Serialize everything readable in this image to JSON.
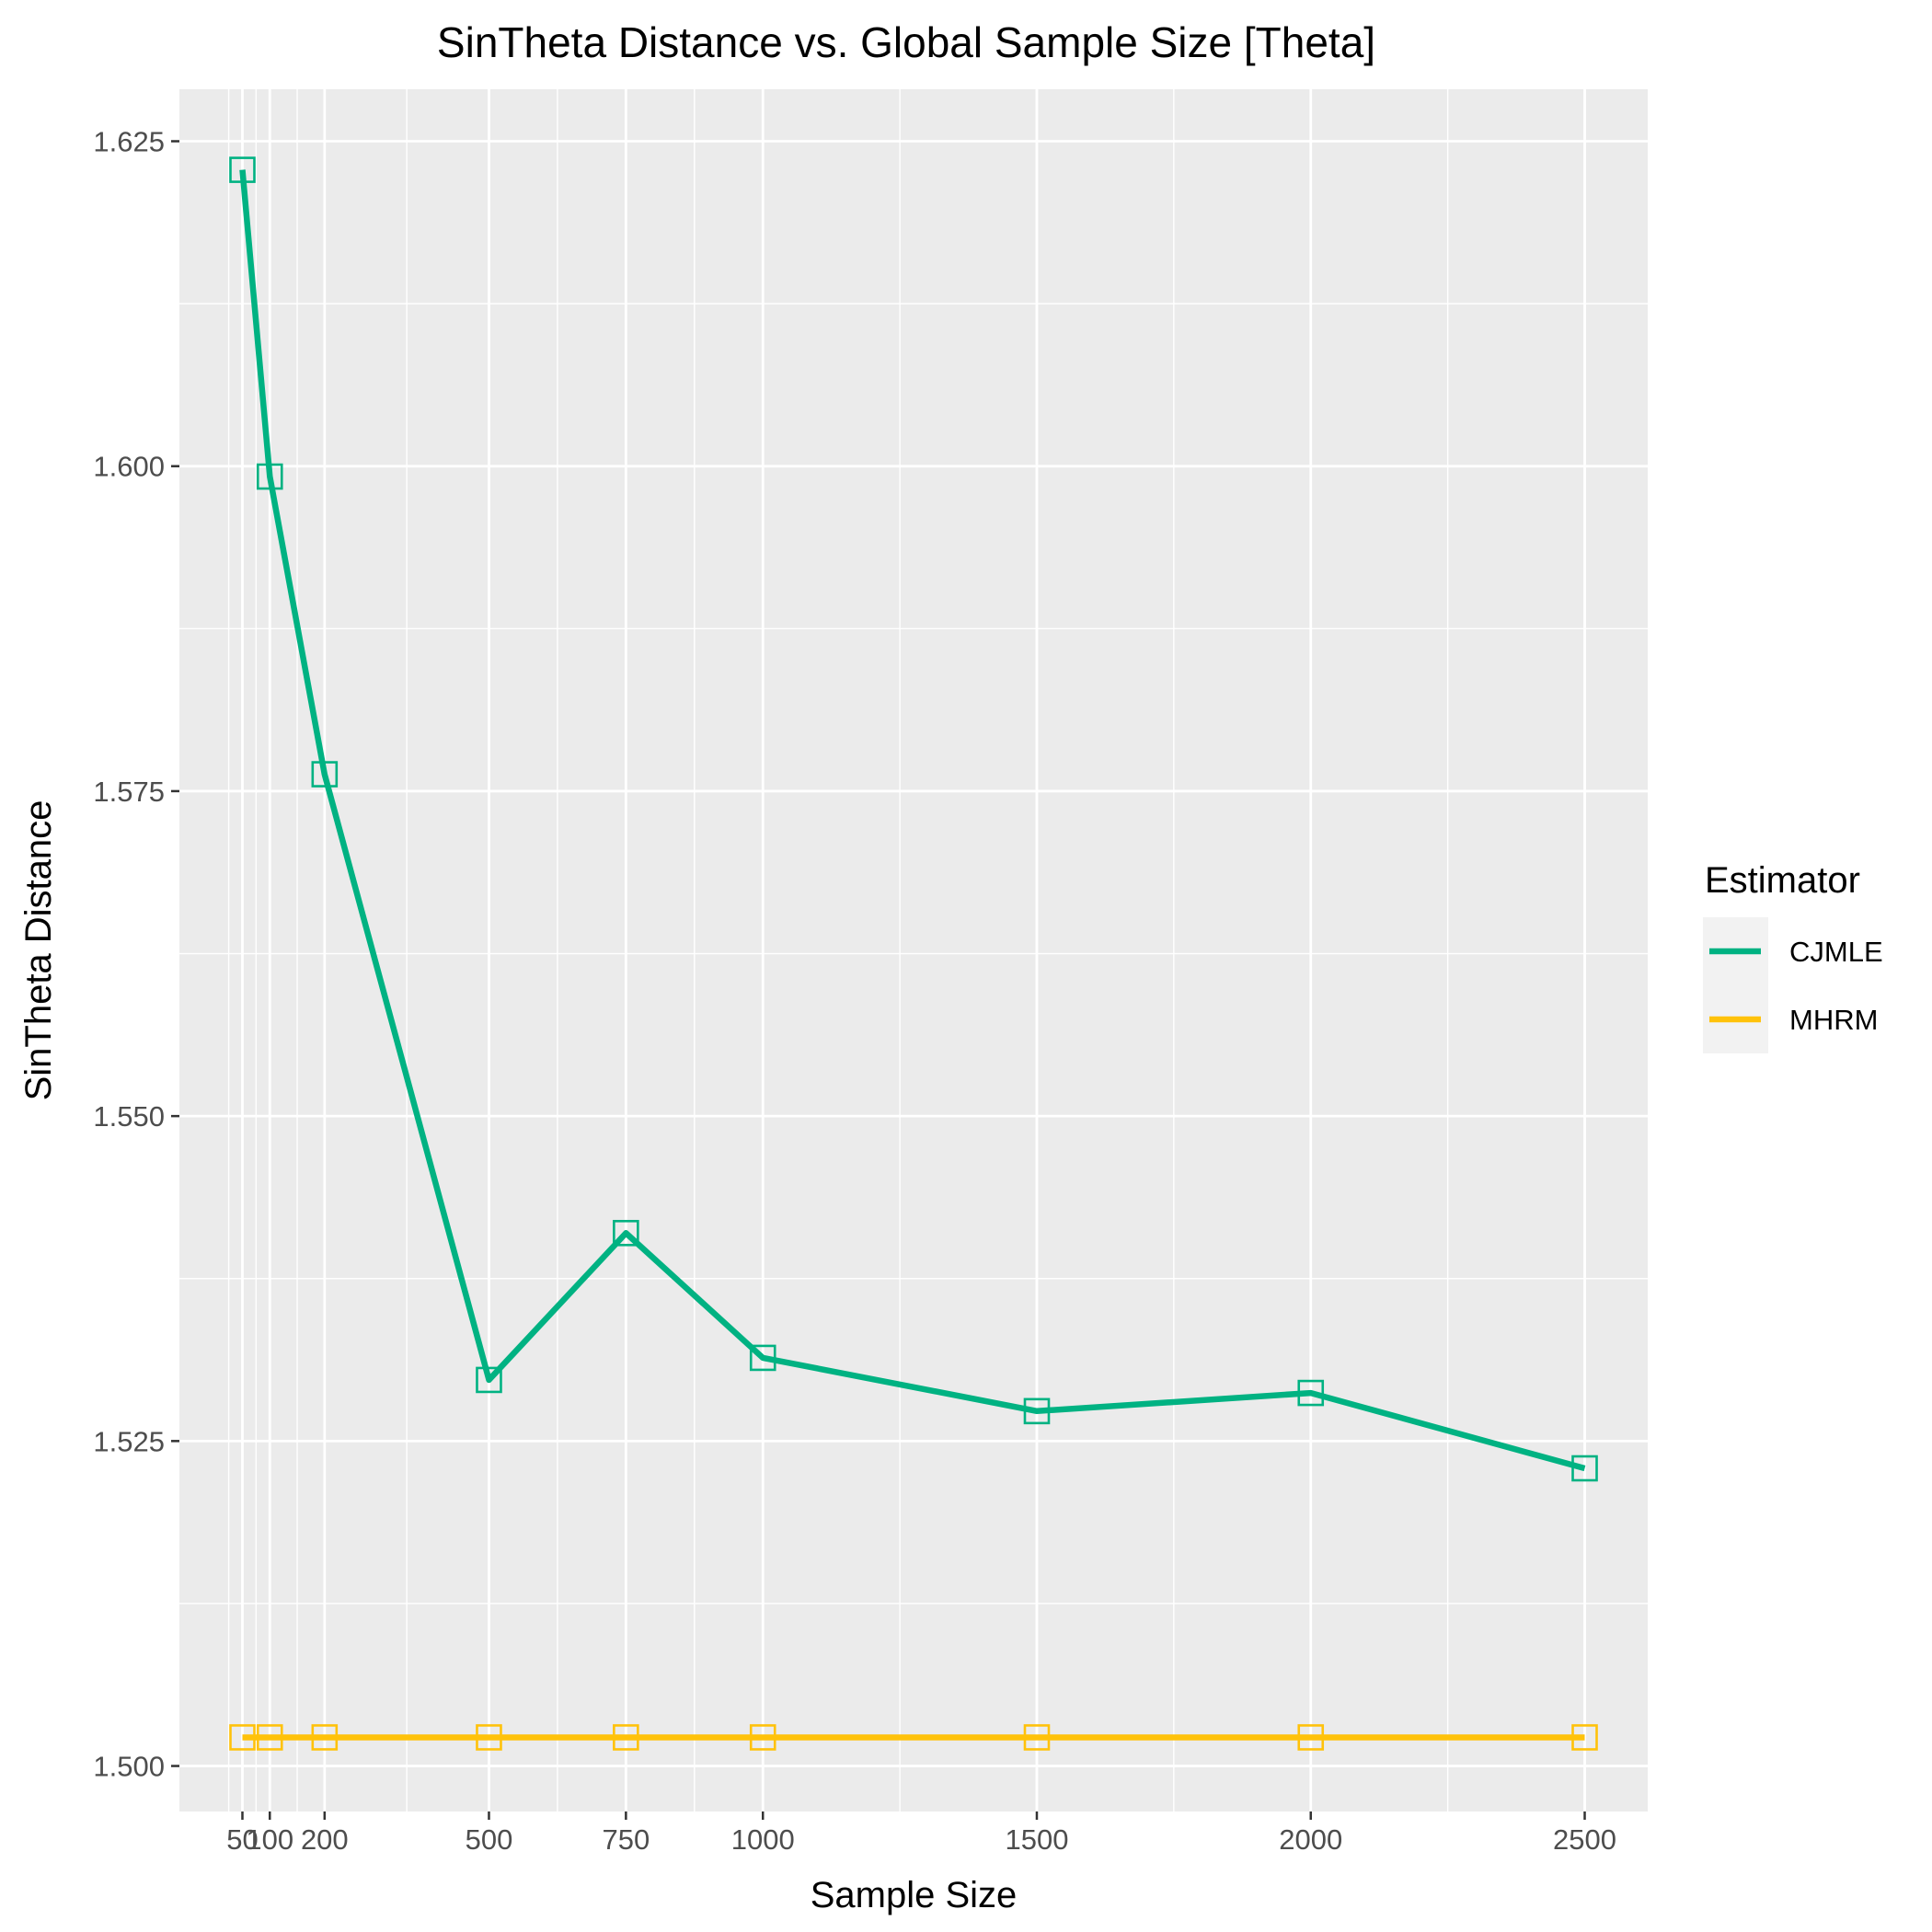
{
  "chart_data": {
    "type": "line",
    "title": "SinTheta Distance vs. Global Sample Size [Theta]",
    "xlabel": "Sample Size",
    "ylabel": "SinTheta Distance",
    "x": [
      50,
      100,
      200,
      500,
      750,
      1000,
      1500,
      2000,
      2500
    ],
    "x_ticks": [
      50,
      100,
      200,
      500,
      750,
      1000,
      1500,
      2000,
      2500
    ],
    "x_tick_labels": [
      "50",
      "100",
      "200",
      "500",
      "750",
      "1000",
      "1500",
      "2000",
      "2500"
    ],
    "y_ticks": [
      1.5,
      1.525,
      1.55,
      1.575,
      1.6,
      1.625
    ],
    "y_tick_labels": [
      "1.500",
      "1.525",
      "1.550",
      "1.575",
      "1.600",
      "1.625"
    ],
    "xlim": [
      -65,
      2615
    ],
    "ylim": [
      1.4965,
      1.629
    ],
    "grid": true,
    "legend": {
      "title": "Estimator",
      "position": "right"
    },
    "series": [
      {
        "name": "CJMLE",
        "color": "#00b282",
        "marker": "open-square",
        "values": [
          1.6228,
          1.5992,
          1.5763,
          1.5297,
          1.541,
          1.5314,
          1.5273,
          1.5287,
          1.5229
        ]
      },
      {
        "name": "MHRM",
        "color": "#ffc20a",
        "marker": "open-square",
        "values": [
          1.5022,
          1.5022,
          1.5022,
          1.5022,
          1.5022,
          1.5022,
          1.5022,
          1.5022,
          1.5022
        ]
      }
    ]
  }
}
